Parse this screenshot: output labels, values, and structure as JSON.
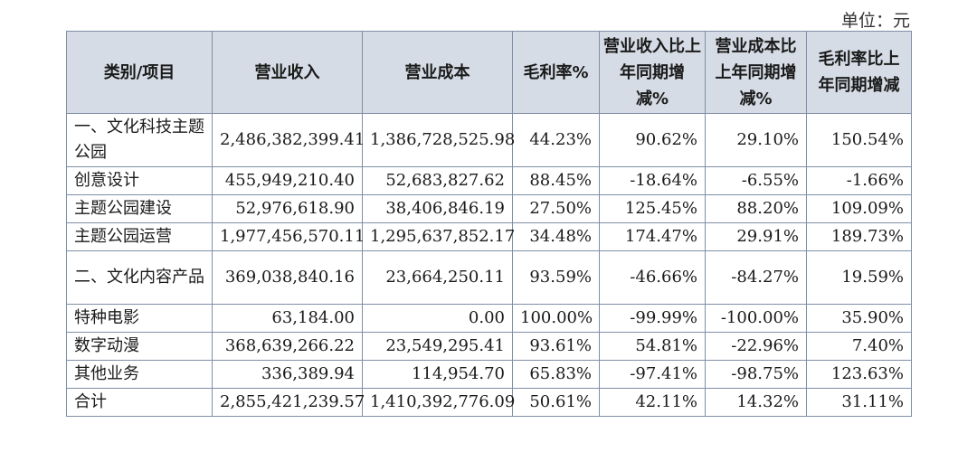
{
  "unit_label": "单位：元",
  "headers": [
    "类别/项目",
    "营业收入",
    "营业成本",
    "毛利率%",
    "营业收入比上年同期增减%",
    "营业成本比上年同期增减%",
    "毛利率比上年同期增减"
  ],
  "rows": [
    {
      "category": "一、文化科技主题公园",
      "revenue": "2,486,382,399.41",
      "cost": "1,386,728,525.98",
      "gross_margin": "44.23%",
      "revenue_change": "90.62%",
      "cost_change": "29.10%",
      "margin_change": "150.54%"
    },
    {
      "category": "创意设计",
      "revenue": "455,949,210.40",
      "cost": "52,683,827.62",
      "gross_margin": "88.45%",
      "revenue_change": "-18.64%",
      "cost_change": "-6.55%",
      "margin_change": "-1.66%"
    },
    {
      "category": "主题公园建设",
      "revenue": "52,976,618.90",
      "cost": "38,406,846.19",
      "gross_margin": "27.50%",
      "revenue_change": "125.45%",
      "cost_change": "88.20%",
      "margin_change": "109.09%"
    },
    {
      "category": "主题公园运营",
      "revenue": "1,977,456,570.11",
      "cost": "1,295,637,852.17",
      "gross_margin": "34.48%",
      "revenue_change": "174.47%",
      "cost_change": "29.91%",
      "margin_change": "189.73%"
    },
    {
      "category": "二、文化内容产品",
      "revenue": "369,038,840.16",
      "cost": "23,664,250.11",
      "gross_margin": "93.59%",
      "revenue_change": "-46.66%",
      "cost_change": "-84.27%",
      "margin_change": "19.59%"
    },
    {
      "category": "特种电影",
      "revenue": "63,184.00",
      "cost": "0.00",
      "gross_margin": "100.00%",
      "revenue_change": "-99.99%",
      "cost_change": "-100.00%",
      "margin_change": "35.90%"
    },
    {
      "category": "数字动漫",
      "revenue": "368,639,266.22",
      "cost": "23,549,295.41",
      "gross_margin": "93.61%",
      "revenue_change": "54.81%",
      "cost_change": "-22.96%",
      "margin_change": "7.40%"
    },
    {
      "category": "其他业务",
      "revenue": "336,389.94",
      "cost": "114,954.70",
      "gross_margin": "65.83%",
      "revenue_change": "-97.41%",
      "cost_change": "-98.75%",
      "margin_change": "123.63%"
    },
    {
      "category": "合计",
      "revenue": "2,855,421,239.57",
      "cost": "1,410,392,776.09",
      "gross_margin": "50.61%",
      "revenue_change": "42.11%",
      "cost_change": "14.32%",
      "margin_change": "31.11%"
    }
  ]
}
